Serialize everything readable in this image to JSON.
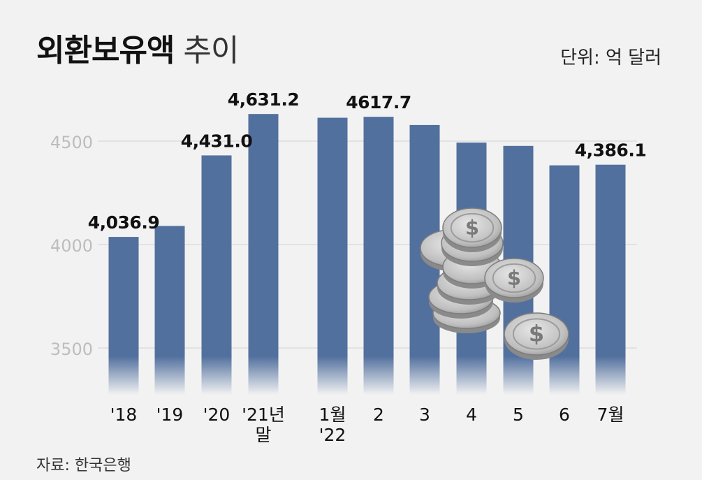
{
  "header": {
    "title_bold": "외환보유액",
    "title_light": "추이",
    "unit": "단위: 억 달러"
  },
  "footer": {
    "source": "자료: 한국은행"
  },
  "colors": {
    "bar": "#52709e",
    "grid": "#d2d2d2",
    "tick": "#bdbdbd",
    "background": "#f2f2f2"
  },
  "chart_data": {
    "type": "bar",
    "ylim": [
      3300,
      4800
    ],
    "yticks": [
      {
        "value": 3500,
        "label": "3500"
      },
      {
        "value": 4000,
        "label": "4000"
      },
      {
        "value": 4500,
        "label": "4500"
      }
    ],
    "categories": [
      "'18",
      "'19",
      "'20",
      "'21년 말",
      "1월 '22",
      "2",
      "3",
      "4",
      "5",
      "6",
      "7월"
    ],
    "category_lines": [
      [
        "'18"
      ],
      [
        "'19"
      ],
      [
        "'20"
      ],
      [
        "'21년",
        "말"
      ],
      [
        "1월",
        "'22"
      ],
      [
        "2"
      ],
      [
        "3"
      ],
      [
        "4"
      ],
      [
        "5"
      ],
      [
        "6"
      ],
      [
        "7월"
      ]
    ],
    "values": [
      4036.9,
      4090,
      4431.0,
      4631.2,
      4613.1,
      4617.7,
      4578,
      4493,
      4477,
      4383,
      4386.1
    ],
    "data_labels": [
      "4,036.9",
      "",
      "4,431.0",
      "4,631.2",
      "",
      "4617.7",
      "",
      "",
      "",
      "",
      "4,386.1"
    ]
  },
  "decoration": {
    "icon": "dollar-coin-stack-icon",
    "coin_symbol": "$"
  }
}
